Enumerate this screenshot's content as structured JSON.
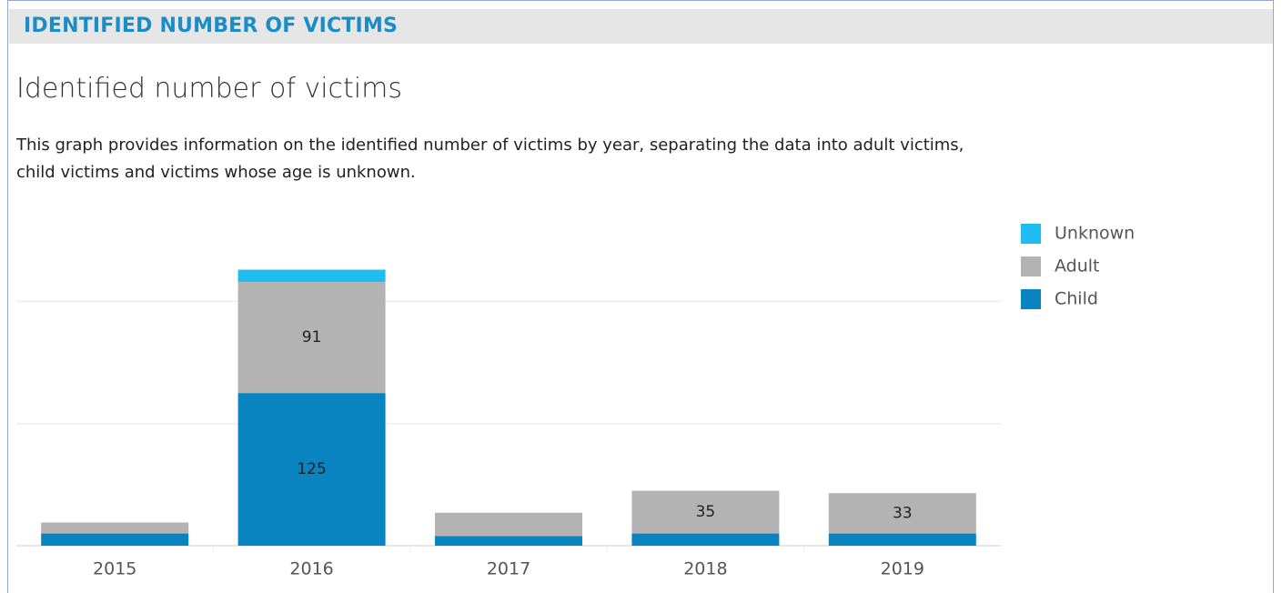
{
  "header": {
    "title": "IDENTIFIED NUMBER OF VICTIMS"
  },
  "chart_data": {
    "type": "stacked_bar",
    "title": "Identified number of victims",
    "subtitle": "This graph provides information on the identified number of victims by year, separating the data into adult victims, child victims and victims whose age is unknown.",
    "categories": [
      "2015",
      "2016",
      "2017",
      "2018",
      "2019"
    ],
    "series": [
      {
        "name": "Child",
        "color": "#0a84c1",
        "values": [
          10,
          125,
          8,
          10,
          10
        ]
      },
      {
        "name": "Adult",
        "color": "#b3b3b3",
        "values": [
          9,
          91,
          19,
          35,
          33
        ]
      },
      {
        "name": "Unknown",
        "color": "#1fbcf0",
        "values": [
          null,
          10,
          null,
          null,
          null
        ]
      }
    ],
    "ylim": [
      0,
      280
    ],
    "yticks": [
      0,
      100,
      200
    ],
    "grid": true,
    "legend": "right"
  }
}
